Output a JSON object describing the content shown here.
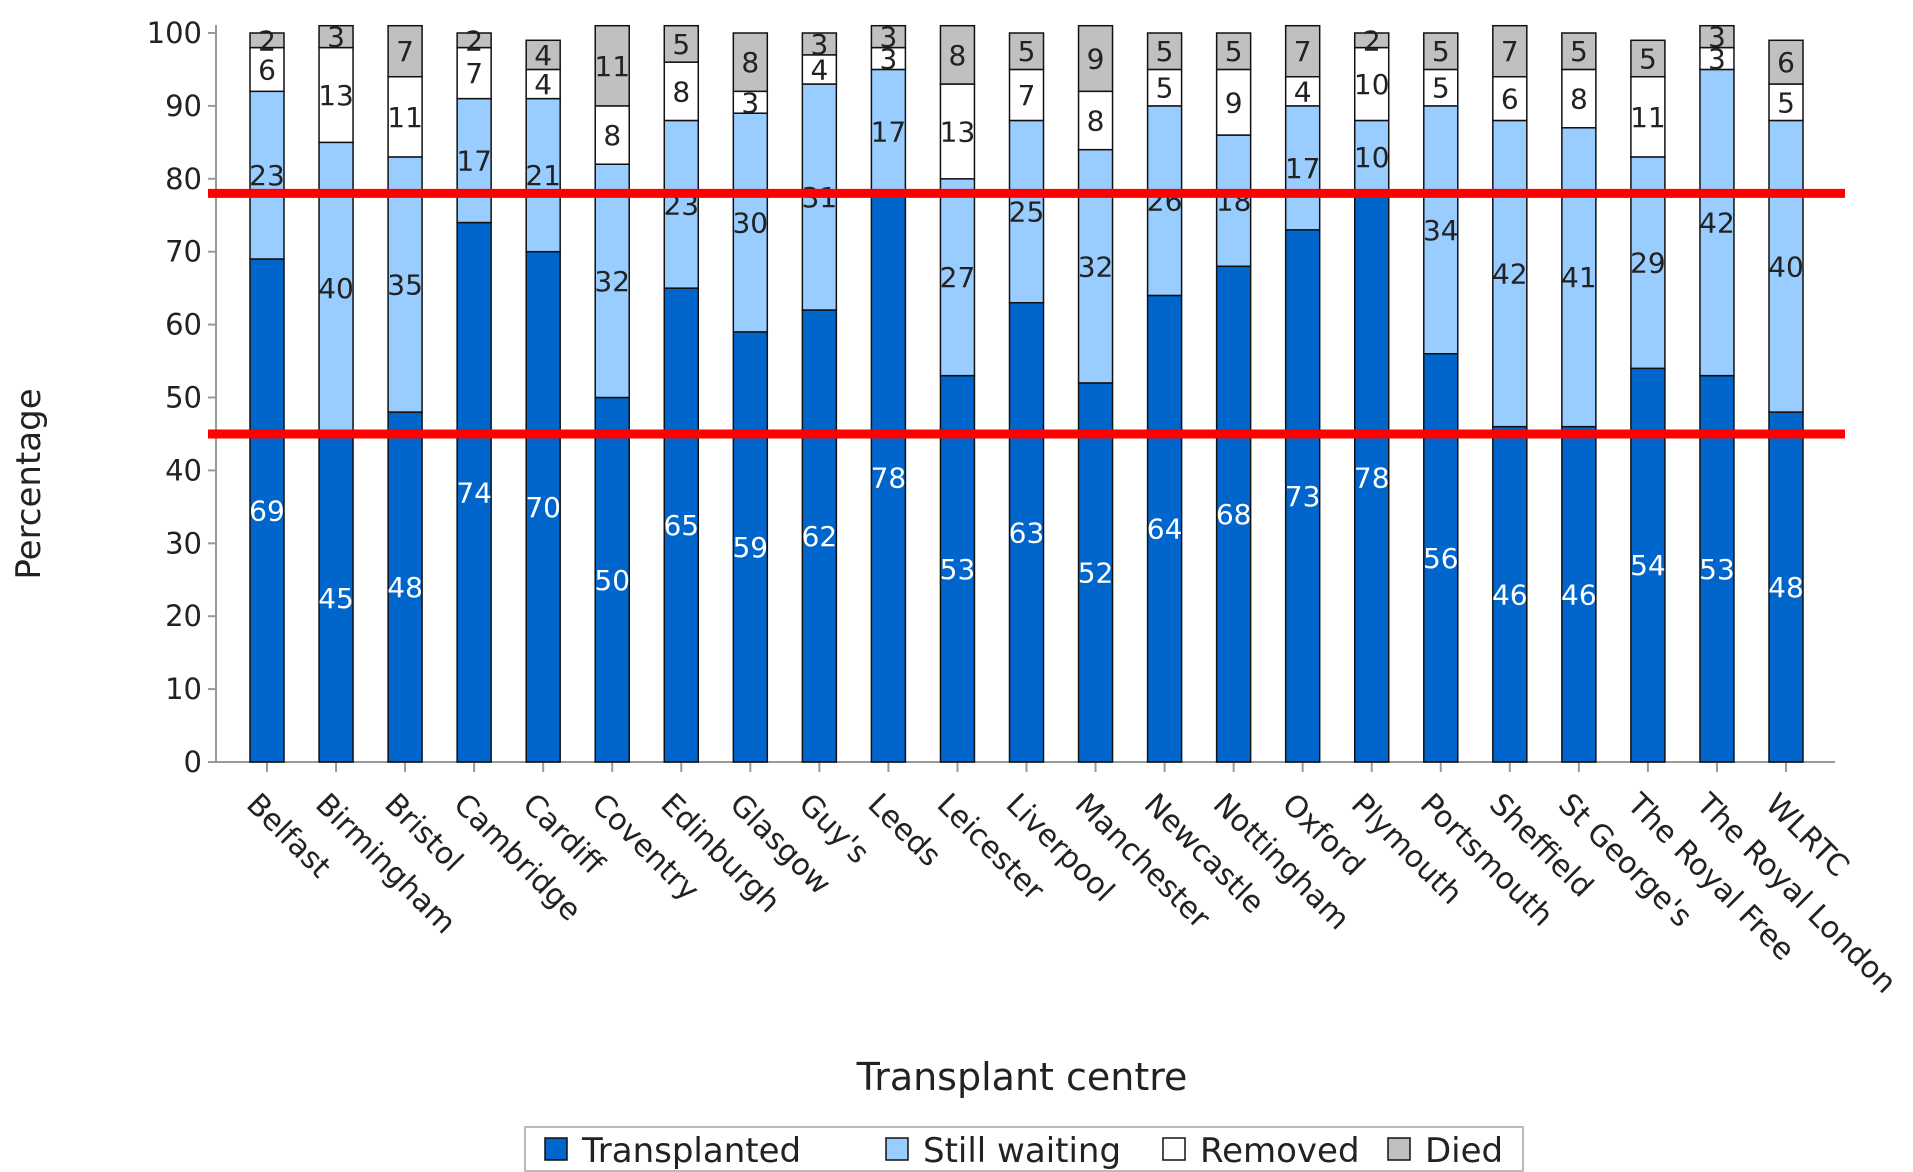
{
  "chart_data": {
    "type": "stacked_bar",
    "x_label": "Transplant centre",
    "y_label": "Percentage",
    "categories": [
      "Belfast",
      "Birmingham",
      "Bristol",
      "Cambridge",
      "Cardiff",
      "Coventry",
      "Edinburgh",
      "Glasgow",
      "Guy's",
      "Leeds",
      "Leicester",
      "Liverpool",
      "Manchester",
      "Newcastle",
      "Nottingham",
      "Oxford",
      "Plymouth",
      "Portsmouth",
      "Sheffield",
      "St George's",
      "The Royal Free",
      "The Royal London",
      "WLRTC"
    ],
    "series": [
      {
        "name": "Transplanted",
        "color": "#0066cc",
        "label_color": "#ffffff",
        "values": [
          69,
          45,
          48,
          74,
          70,
          50,
          65,
          59,
          62,
          78,
          53,
          63,
          52,
          64,
          68,
          73,
          78,
          56,
          46,
          46,
          54,
          53,
          48
        ]
      },
      {
        "name": "Still waiting",
        "color": "#99ccff",
        "label_color": "#222222",
        "values": [
          23,
          40,
          35,
          17,
          21,
          32,
          23,
          30,
          31,
          17,
          27,
          25,
          32,
          26,
          18,
          17,
          10,
          34,
          42,
          41,
          29,
          42,
          40
        ]
      },
      {
        "name": "Removed",
        "color": "#ffffff",
        "label_color": "#222222",
        "values": [
          6,
          13,
          11,
          7,
          4,
          8,
          8,
          3,
          4,
          3,
          13,
          7,
          8,
          5,
          9,
          4,
          10,
          5,
          6,
          8,
          11,
          3,
          5
        ]
      },
      {
        "name": "Died",
        "color": "#c0c0c0",
        "label_color": "#222222",
        "values": [
          2,
          3,
          7,
          2,
          4,
          11,
          5,
          8,
          3,
          3,
          8,
          5,
          9,
          5,
          5,
          7,
          2,
          5,
          7,
          5,
          5,
          3,
          6
        ]
      }
    ],
    "ylim": [
      0,
      100
    ],
    "yticks": [
      0,
      10,
      20,
      30,
      40,
      50,
      60,
      70,
      80,
      90,
      100
    ],
    "reference_lines": [
      {
        "value": 78,
        "color": "#ff0000"
      },
      {
        "value": 45,
        "color": "#ff0000"
      }
    ],
    "legend": "bottom"
  }
}
